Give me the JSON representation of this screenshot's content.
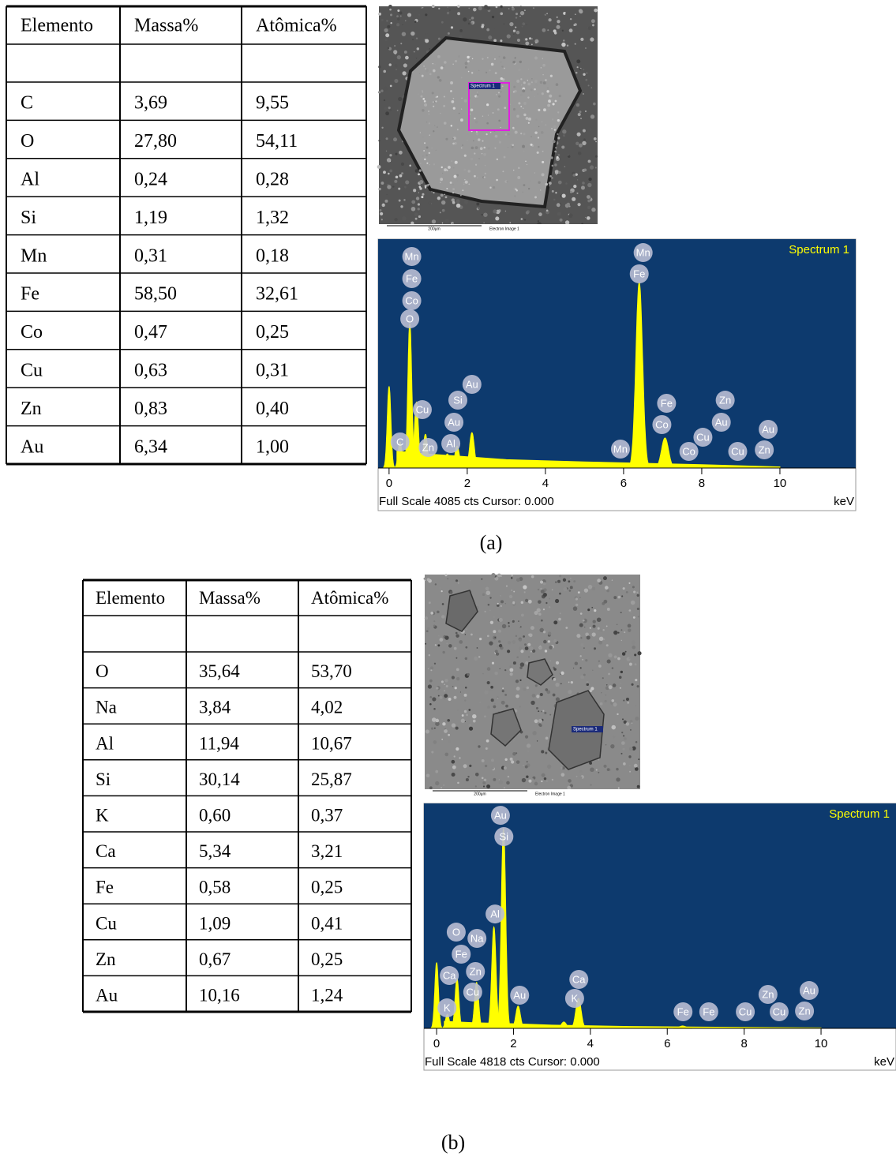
{
  "panels": [
    {
      "caption": "(a)",
      "table": {
        "header": [
          "Elemento",
          "Massa%",
          "Atômica%"
        ],
        "rows": [
          [
            "C",
            "3,69",
            "9,55"
          ],
          [
            "O",
            "27,80",
            "54,11"
          ],
          [
            "Al",
            "0,24",
            "0,28"
          ],
          [
            "Si",
            "1,19",
            "1,32"
          ],
          [
            "Mn",
            "0,31",
            "0,18"
          ],
          [
            "Fe",
            "58,50",
            "32,61"
          ],
          [
            "Co",
            "0,47",
            "0,25"
          ],
          [
            "Cu",
            "0,63",
            "0,31"
          ],
          [
            "Zn",
            "0,83",
            "0,40"
          ],
          [
            "Au",
            "6,34",
            "1,00"
          ]
        ]
      },
      "image": {
        "spectrum_label": "Spectrum 1",
        "scale_label": "200µm",
        "caption": "Electron Image 1"
      },
      "spectrum": {
        "title": "Spectrum 1",
        "footer": "Full Scale 4085 cts Cursor: 0.000",
        "unit": "keV",
        "xlim": [
          -0.28,
          11.94
        ],
        "ylim": [
          0,
          4085
        ],
        "xticks": [
          0,
          2,
          4,
          6,
          8,
          10
        ],
        "peaks": [
          {
            "x": 0.0,
            "counts": 1450
          },
          {
            "x": 0.28,
            "counts": 465
          },
          {
            "x": 0.53,
            "counts": 2580
          },
          {
            "x": 0.7,
            "counts": 1170
          },
          {
            "x": 0.93,
            "counts": 600
          },
          {
            "x": 1.49,
            "counts": 250
          },
          {
            "x": 1.74,
            "counts": 390
          },
          {
            "x": 2.12,
            "counts": 630
          },
          {
            "x": 6.4,
            "counts": 3310
          },
          {
            "x": 7.06,
            "counts": 535
          }
        ],
        "background": {
          "x": [
            0.2,
            1,
            2,
            3,
            5,
            8,
            10
          ],
          "counts": [
            300,
            250,
            200,
            150,
            110,
            60,
            20
          ]
        },
        "labels": [
          {
            "text": "Mn",
            "x": 0.58,
            "counts": 3775
          },
          {
            "text": "Fe",
            "x": 0.58,
            "counts": 3381
          },
          {
            "text": "Co",
            "x": 0.58,
            "counts": 2986
          },
          {
            "text": "O",
            "x": 0.53,
            "counts": 2662
          },
          {
            "text": "Cu",
            "x": 0.85,
            "counts": 1042
          },
          {
            "text": "C",
            "x": 0.28,
            "counts": 465
          },
          {
            "text": "Zn",
            "x": 1.0,
            "counts": 366
          },
          {
            "text": "Si",
            "x": 1.76,
            "counts": 1211
          },
          {
            "text": "Au",
            "x": 2.12,
            "counts": 1493
          },
          {
            "text": "Au",
            "x": 1.66,
            "counts": 817
          },
          {
            "text": "Al",
            "x": 1.58,
            "counts": 437
          },
          {
            "text": "Mn",
            "x": 6.5,
            "counts": 3845
          },
          {
            "text": "Fe",
            "x": 6.4,
            "counts": 3465
          },
          {
            "text": "Mn",
            "x": 5.92,
            "counts": 338
          },
          {
            "text": "Fe",
            "x": 7.1,
            "counts": 1155
          },
          {
            "text": "Co",
            "x": 6.98,
            "counts": 775
          },
          {
            "text": "Zn",
            "x": 8.6,
            "counts": 1211
          },
          {
            "text": "Au",
            "x": 8.5,
            "counts": 817
          },
          {
            "text": "Cu",
            "x": 8.03,
            "counts": 549
          },
          {
            "text": "Co",
            "x": 7.67,
            "counts": 296
          },
          {
            "text": "Cu",
            "x": 8.92,
            "counts": 296
          },
          {
            "text": "Zn",
            "x": 9.6,
            "counts": 324
          },
          {
            "text": "Au",
            "x": 9.7,
            "counts": 690
          }
        ]
      }
    },
    {
      "caption": "(b)",
      "table": {
        "header": [
          "Elemento",
          "Massa%",
          "Atômica%"
        ],
        "rows": [
          [
            "O",
            "35,64",
            "53,70"
          ],
          [
            "Na",
            "3,84",
            "4,02"
          ],
          [
            "Al",
            "11,94",
            "10,67"
          ],
          [
            "Si",
            "30,14",
            "25,87"
          ],
          [
            "K",
            "0,60",
            "0,37"
          ],
          [
            "Ca",
            "5,34",
            "3,21"
          ],
          [
            "Fe",
            "0,58",
            "0,25"
          ],
          [
            "Cu",
            "1,09",
            "0,41"
          ],
          [
            "Zn",
            "0,67",
            "0,25"
          ],
          [
            "Au",
            "10,16",
            "1,24"
          ]
        ]
      },
      "image": {
        "spectrum_label": "Spectrum 1",
        "scale_label": "200µm",
        "caption": "Electron Image 1"
      },
      "spectrum": {
        "title": "Spectrum 1",
        "footer": "Full Scale 4818 cts Cursor: 0.000",
        "unit": "keV",
        "xlim": [
          -0.33,
          11.95
        ],
        "ylim": [
          0,
          4818
        ],
        "xticks": [
          0,
          2,
          4,
          6,
          8,
          10
        ],
        "peaks": [
          {
            "x": 0.0,
            "counts": 1400
          },
          {
            "x": 0.28,
            "counts": 300
          },
          {
            "x": 0.53,
            "counts": 1065
          },
          {
            "x": 1.04,
            "counts": 980
          },
          {
            "x": 1.49,
            "counts": 2165
          },
          {
            "x": 1.74,
            "counts": 4280
          },
          {
            "x": 2.12,
            "counts": 475
          },
          {
            "x": 3.31,
            "counts": 135
          },
          {
            "x": 3.69,
            "counts": 640
          },
          {
            "x": 6.4,
            "counts": 50
          }
        ],
        "background": {
          "x": [
            0.2,
            1,
            2,
            3,
            5,
            8,
            10
          ],
          "counts": [
            150,
            120,
            100,
            70,
            40,
            20,
            10
          ]
        },
        "labels": [
          {
            "text": "Au",
            "x": 1.66,
            "counts": 4563
          },
          {
            "text": "Si",
            "x": 1.75,
            "counts": 4107
          },
          {
            "text": "Al",
            "x": 1.52,
            "counts": 2450
          },
          {
            "text": "O",
            "x": 0.51,
            "counts": 2062
          },
          {
            "text": "Na",
            "x": 1.05,
            "counts": 1927
          },
          {
            "text": "Fe",
            "x": 0.64,
            "counts": 1589
          },
          {
            "text": "Ca",
            "x": 0.33,
            "counts": 1132
          },
          {
            "text": "Zn",
            "x": 1.01,
            "counts": 1217
          },
          {
            "text": "Cu",
            "x": 0.94,
            "counts": 777
          },
          {
            "text": "K",
            "x": 0.27,
            "counts": 439
          },
          {
            "text": "Au",
            "x": 2.16,
            "counts": 710
          },
          {
            "text": "Ca",
            "x": 3.7,
            "counts": 1048
          },
          {
            "text": "K",
            "x": 3.59,
            "counts": 642
          },
          {
            "text": "Fe",
            "x": 6.41,
            "counts": 355
          },
          {
            "text": "Fe",
            "x": 7.08,
            "counts": 355
          },
          {
            "text": "Cu",
            "x": 8.03,
            "counts": 355
          },
          {
            "text": "Zn",
            "x": 8.62,
            "counts": 727
          },
          {
            "text": "Cu",
            "x": 8.91,
            "counts": 355
          },
          {
            "text": "Au",
            "x": 9.69,
            "counts": 811
          },
          {
            "text": "Zn",
            "x": 9.57,
            "counts": 372
          }
        ]
      }
    }
  ]
}
